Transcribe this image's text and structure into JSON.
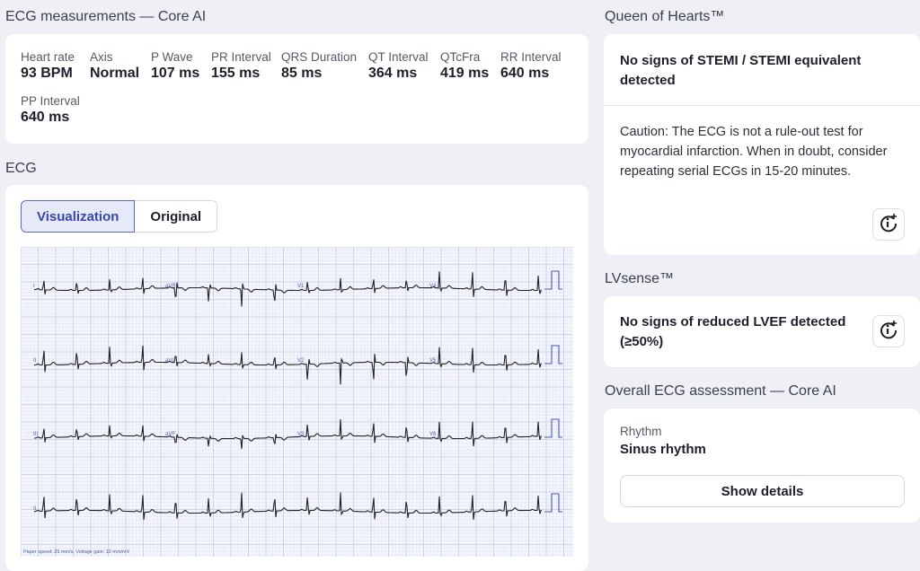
{
  "measurements": {
    "title": "ECG measurements — Core AI",
    "items": [
      {
        "label": "Heart rate",
        "value": "93 BPM"
      },
      {
        "label": "Axis",
        "value": "Normal"
      },
      {
        "label": "P Wave",
        "value": "107 ms"
      },
      {
        "label": "PR Interval",
        "value": "155 ms"
      },
      {
        "label": "QRS Duration",
        "value": "85 ms"
      },
      {
        "label": "QT Interval",
        "value": "364 ms"
      },
      {
        "label": "QTcFra",
        "value": "419 ms"
      },
      {
        "label": "RR Interval",
        "value": "640 ms"
      },
      {
        "label": "PP Interval",
        "value": "640 ms"
      }
    ]
  },
  "ecg": {
    "title": "ECG",
    "tabs": [
      "Visualization",
      "Original"
    ],
    "active_tab": "Visualization",
    "leads": [
      [
        "I",
        "aVR",
        "V1",
        "V4"
      ],
      [
        "II",
        "aVL",
        "V2",
        "V5"
      ],
      [
        "III",
        "aVF",
        "V3",
        "V6"
      ],
      [
        "II"
      ]
    ],
    "footer": "Paper speed: 25 mm/s, Voltage gain: 10 mm/mV"
  },
  "queen": {
    "title": "Queen of Hearts™",
    "result": "No signs of STEMI / STEMI equivalent detected",
    "caution": "Caution: The ECG is not a rule-out test for myocardial infarction. When in doubt, consider repeating serial ECGs in 15-20 minutes."
  },
  "lvsense": {
    "title": "LVsense™",
    "result": "No signs of reduced LVEF detected (≥50%)"
  },
  "overall": {
    "title": "Overall ECG assessment — Core AI",
    "rhythm_label": "Rhythm",
    "rhythm_value": "Sinus rhythm",
    "details_button": "Show details"
  }
}
